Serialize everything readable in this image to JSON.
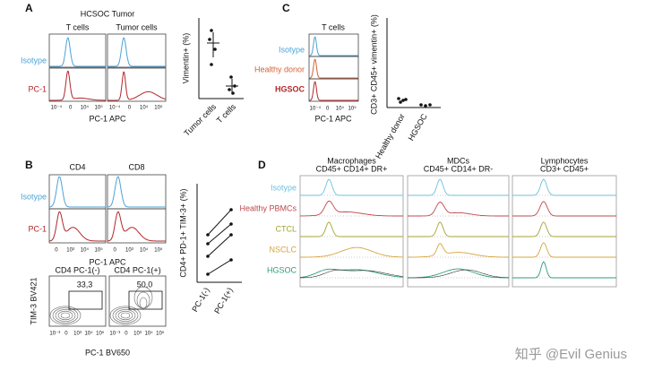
{
  "watermark": "知乎 @Evil Genius",
  "panels": {
    "a": {
      "letter": "A",
      "title": "HCSOC Tumor",
      "columns": [
        "T cells",
        "Tumor cells"
      ],
      "rows": [
        "Isotype",
        "PC-1"
      ],
      "x_ticks": [
        "10⁻⁴",
        "0",
        "10⁴",
        "10⁵"
      ],
      "x_label": "PC-1 APC",
      "dot_y_label": "Vimentin+ (%)",
      "dot_categories": [
        "Tumor cells",
        "T cells"
      ]
    },
    "c": {
      "letter": "C",
      "column": "T cells",
      "rows": [
        "Isotype",
        "Healthy donor",
        "HGSOC"
      ],
      "x_ticks": [
        "10⁻⁴",
        "0",
        "10⁴",
        "10⁵"
      ],
      "x_label": "PC-1 APC",
      "dot_y_label": "CD3+ CD45+ vimentin+ (%)",
      "dot_categories": [
        "Healthy donor",
        "HGSOC"
      ]
    },
    "b": {
      "letter": "B",
      "columns": [
        "CD4",
        "CD8"
      ],
      "rows": [
        "Isotype",
        "PC-1"
      ],
      "x_ticks": [
        "0",
        "10³",
        "10⁴",
        "10⁵"
      ],
      "x_label": "PC-1 APC",
      "dot_y_label": "CD4+ PD-1+ TIM-3+ (%)",
      "dot_categories": [
        "PC-1(-)",
        "PC-1(+)"
      ],
      "contour_titles": [
        "CD4 PC-1(-)",
        "CD4 PC-1(+)"
      ],
      "gate_values": [
        "33,3",
        "50,0"
      ],
      "contour_y_label": "TIM-3 BV421",
      "contour_x_ticks": [
        "10⁻³",
        "0",
        "10³",
        "10⁴",
        "10⁵"
      ],
      "contour_x_label": "PC-1 BV650"
    },
    "d": {
      "letter": "D",
      "columns": [
        {
          "name": "Macrophages",
          "markers": "CD45+ CD14+ DR+"
        },
        {
          "name": "MDCs",
          "markers": "CD45+ CD14+ DR-"
        },
        {
          "name": "Lymphocytes",
          "markers": "CD3+ CD45+"
        }
      ],
      "rows": [
        "Isotype",
        "Healthy PBMCs",
        "CTCL",
        "NSCLC",
        "HGSOC"
      ]
    }
  }
}
